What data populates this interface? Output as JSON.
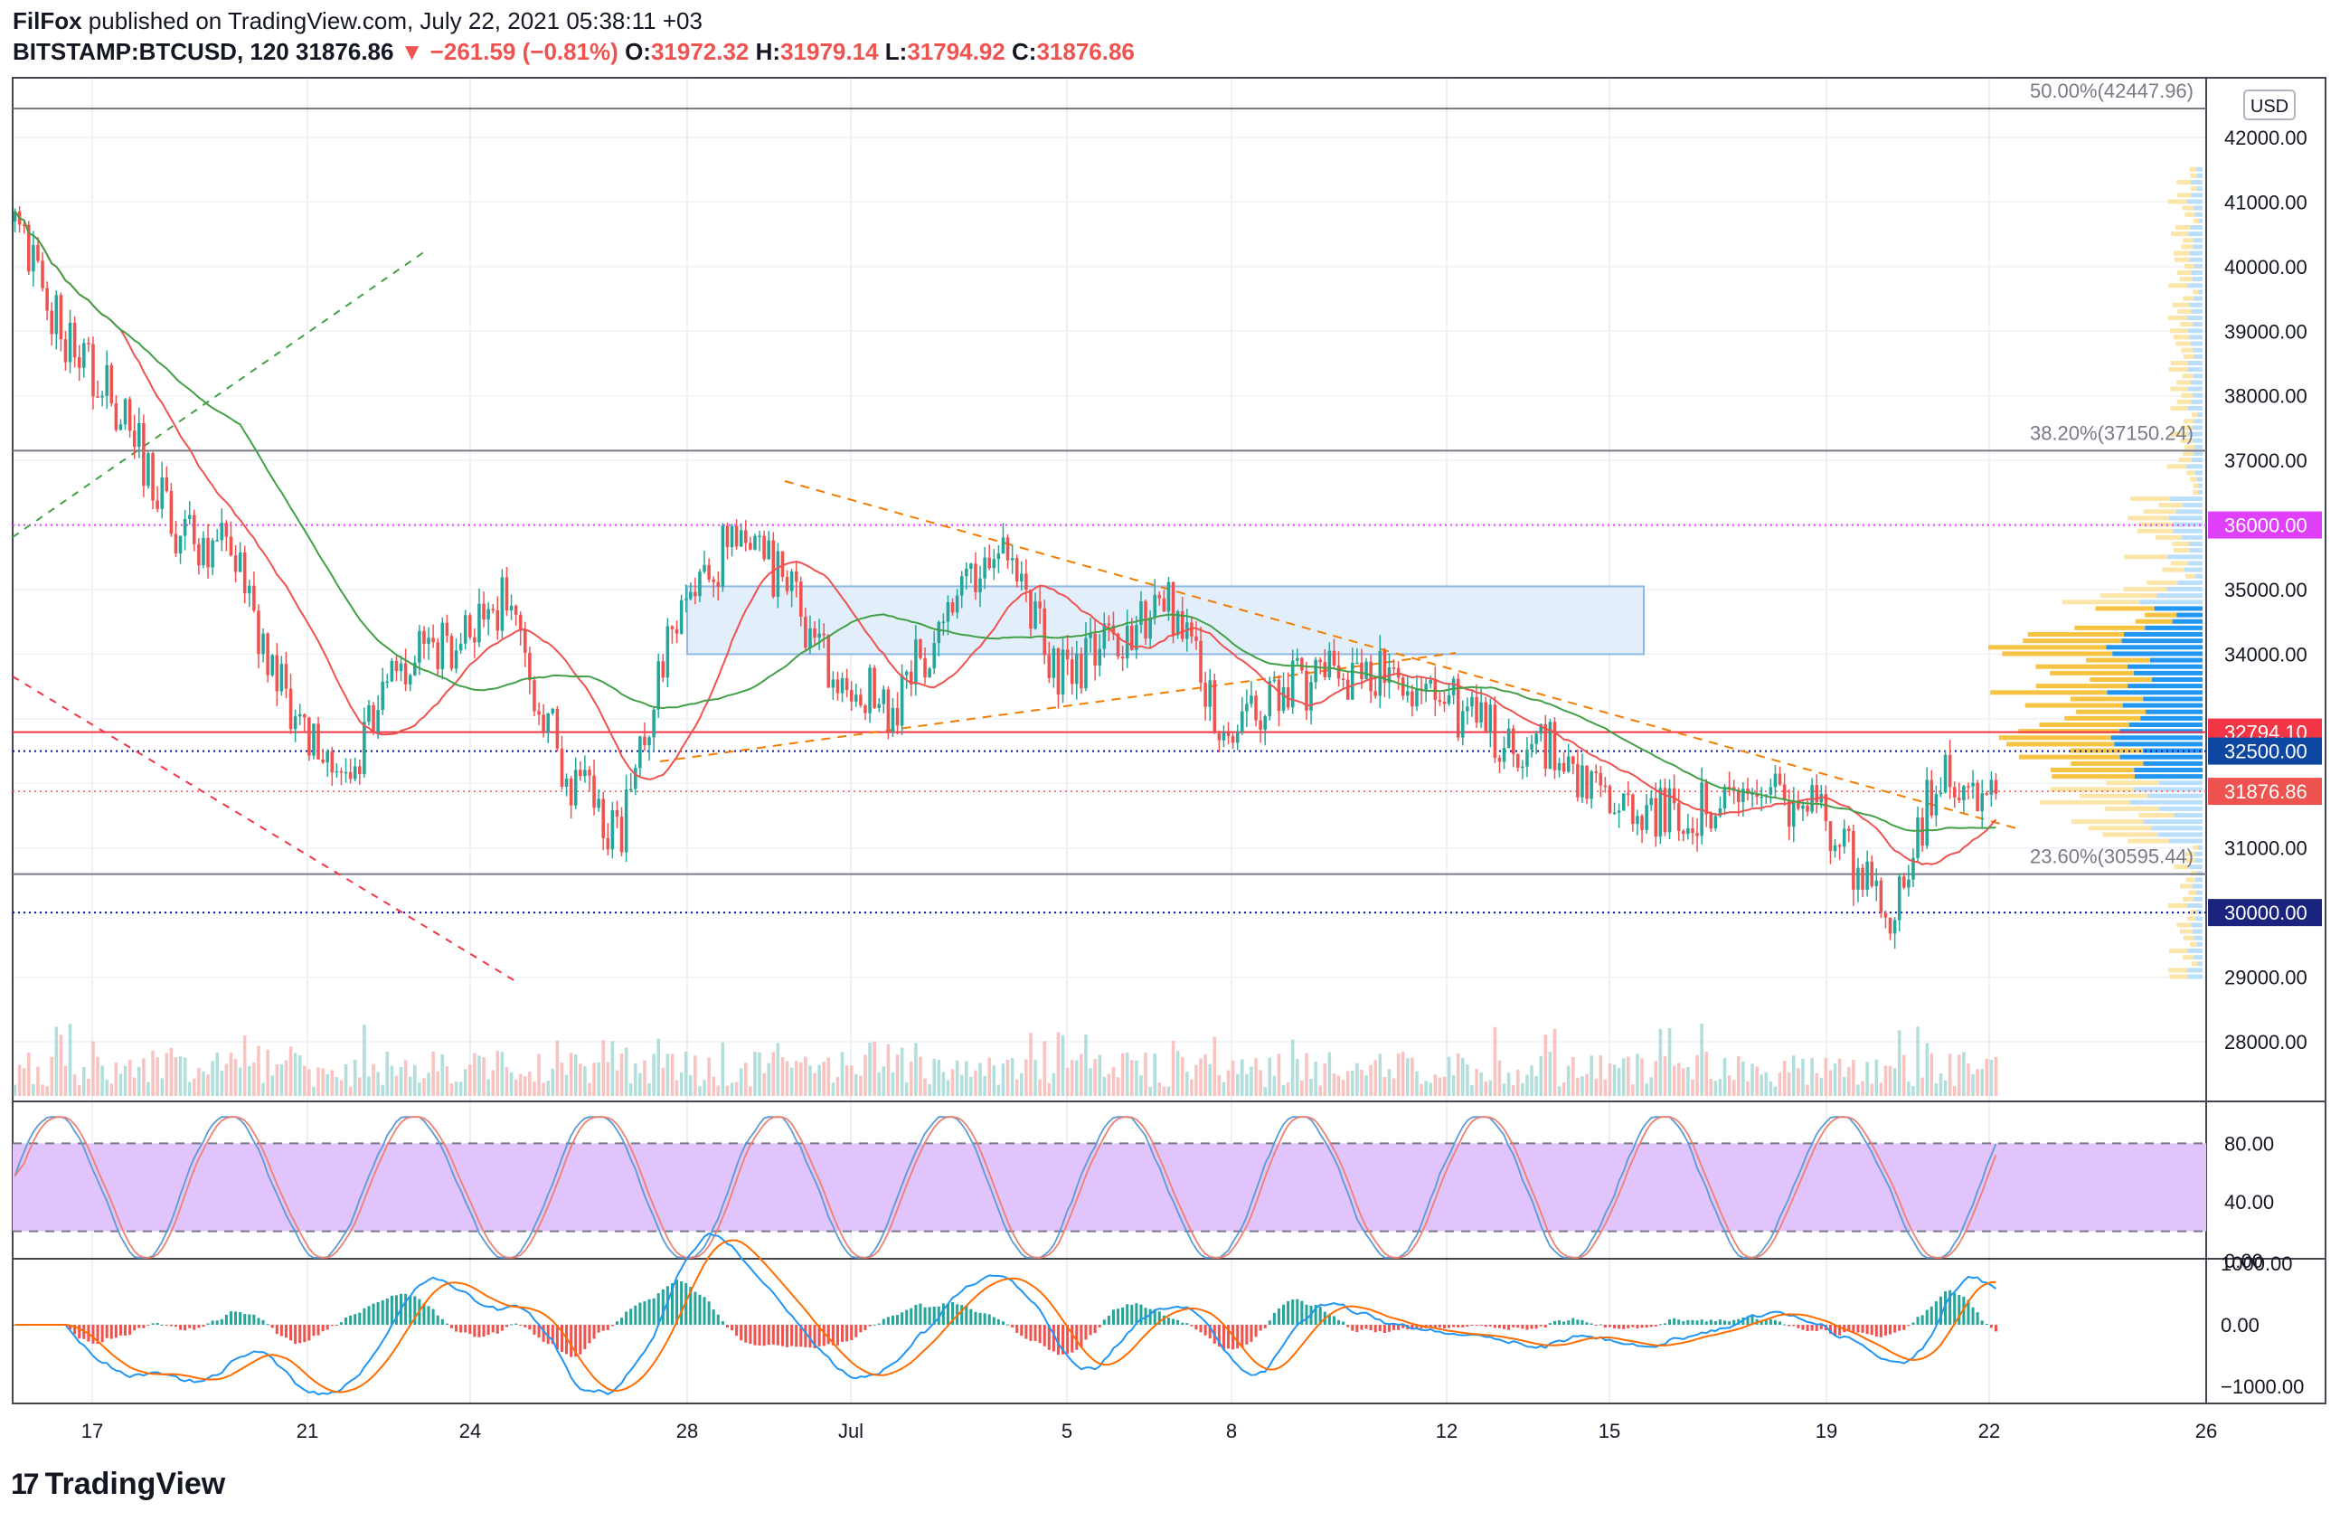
{
  "header": {
    "publisher": "FilFox",
    "published_text": " published on TradingView.com, July 22, 2021 05:38:11 +03",
    "symbol": "BITSTAMP:BTCUSD, 120",
    "last": "31876.86",
    "change_arrow": "▼",
    "change": "−261.59 (−0.81%)",
    "o_label": "O:",
    "o_value": "31972.32",
    "h_label": "H:",
    "h_value": "31979.14",
    "l_label": "L:",
    "l_value": "31794.92",
    "c_label": "C:",
    "c_value": "31876.86"
  },
  "currency_button": "USD",
  "colors": {
    "up": "#26a69a",
    "down": "#ef5350",
    "fib_line": "#787b86",
    "magenta": "#e040fb",
    "blue_dotted": "#0d1a9e",
    "rect_fill": "#e3eefb",
    "rect_stroke": "#90b8e0",
    "ma_red": "#ef5350",
    "ma_green": "#43a047",
    "orange_dash": "#f57c00",
    "stoch_band": "#e1c4fb",
    "stoch_k": "#5b9bd5",
    "stoch_d": "#f08070",
    "macd_line": "#2196f3",
    "signal_line": "#ff6d00"
  },
  "price_axis": {
    "ticks": [
      "42000.00",
      "41000.00",
      "40000.00",
      "39000.00",
      "38000.00",
      "37000.00",
      "35000.00",
      "34000.00",
      "31000.00",
      "29000.00",
      "28000.00"
    ],
    "tick_values": [
      42000,
      41000,
      40000,
      39000,
      38000,
      37000,
      35000,
      34000,
      31000,
      29000,
      28000
    ],
    "badges": [
      {
        "text": "36000.00",
        "value": 36000,
        "color": "#e040fb"
      },
      {
        "text": "32794.10",
        "value": 32794.1,
        "color": "#f23645"
      },
      {
        "text": "32500.00",
        "value": 32500,
        "color": "#0d47a1"
      },
      {
        "text": "31876.86",
        "value": 31876.86,
        "color": "#ef5350"
      },
      {
        "text": "30000.00",
        "value": 30000,
        "color": "#1a237e"
      }
    ]
  },
  "fib_levels": [
    {
      "label": "50.00%(42447.96)",
      "value": 42447.96
    },
    {
      "label": "38.20%(37150.24)",
      "value": 37150.24
    },
    {
      "label": "23.60%(30595.44)",
      "value": 30595.44
    }
  ],
  "stoch_axis": {
    "ticks": [
      "80.00",
      "40.00",
      "0.00"
    ],
    "tick_values": [
      80,
      40,
      0
    ]
  },
  "macd_axis": {
    "ticks": [
      "1000.00",
      "0.00",
      "−1000.00"
    ],
    "tick_values": [
      1000,
      0,
      -1000
    ]
  },
  "time_axis": {
    "labels": [
      "17",
      "21",
      "24",
      "28",
      "Jul",
      "5",
      "8",
      "12",
      "15",
      "19",
      "22",
      "26"
    ]
  },
  "footer": {
    "brand": "TradingView",
    "logo_glyph": "17"
  },
  "chart_data": {
    "type": "candlestick",
    "title": "BITSTAMP:BTCUSD, 120",
    "ylabel": "USD",
    "ylim": [
      28000,
      42500
    ],
    "x_labels": [
      "17",
      "21",
      "24",
      "28",
      "Jul",
      "5",
      "8",
      "12",
      "15",
      "19",
      "22",
      "26"
    ],
    "approx_close_path": [
      {
        "date": "Jun 16",
        "close": 40700
      },
      {
        "date": "Jun 17",
        "close": 38900
      },
      {
        "date": "Jun 18",
        "close": 37800
      },
      {
        "date": "Jun 19",
        "close": 35900
      },
      {
        "date": "Jun 20",
        "close": 35600
      },
      {
        "date": "Jun 21",
        "close": 33200
      },
      {
        "date": "Jun 22",
        "close": 31800
      },
      {
        "date": "Jun 23",
        "close": 33800
      },
      {
        "date": "Jun 24",
        "close": 34200
      },
      {
        "date": "Jun 25",
        "close": 34800
      },
      {
        "date": "Jun 26",
        "close": 32300
      },
      {
        "date": "Jun 27",
        "close": 31100
      },
      {
        "date": "Jun 28",
        "close": 34400
      },
      {
        "date": "Jun 29",
        "close": 35700
      },
      {
        "date": "Jun 30",
        "close": 35200
      },
      {
        "date": "Jul 1",
        "close": 33600
      },
      {
        "date": "Jul 2",
        "close": 33200
      },
      {
        "date": "Jul 3",
        "close": 34600
      },
      {
        "date": "Jul 4",
        "close": 35600
      },
      {
        "date": "Jul 5",
        "close": 33700
      },
      {
        "date": "Jul 6",
        "close": 34200
      },
      {
        "date": "Jul 7",
        "close": 34800
      },
      {
        "date": "Jul 8",
        "close": 32800
      },
      {
        "date": "Jul 9",
        "close": 33400
      },
      {
        "date": "Jul 10",
        "close": 33700
      },
      {
        "date": "Jul 11",
        "close": 33800
      },
      {
        "date": "Jul 12",
        "close": 33300
      },
      {
        "date": "Jul 13",
        "close": 32700
      },
      {
        "date": "Jul 14",
        "close": 32500
      },
      {
        "date": "Jul 15",
        "close": 31700
      },
      {
        "date": "Jul 16",
        "close": 31500
      },
      {
        "date": "Jul 17",
        "close": 31600
      },
      {
        "date": "Jul 18",
        "close": 31800
      },
      {
        "date": "Jul 19",
        "close": 31400
      },
      {
        "date": "Jul 20",
        "close": 29900
      },
      {
        "date": "Jul 21",
        "close": 32200
      },
      {
        "date": "Jul 22",
        "close": 31876.86
      }
    ]
  }
}
